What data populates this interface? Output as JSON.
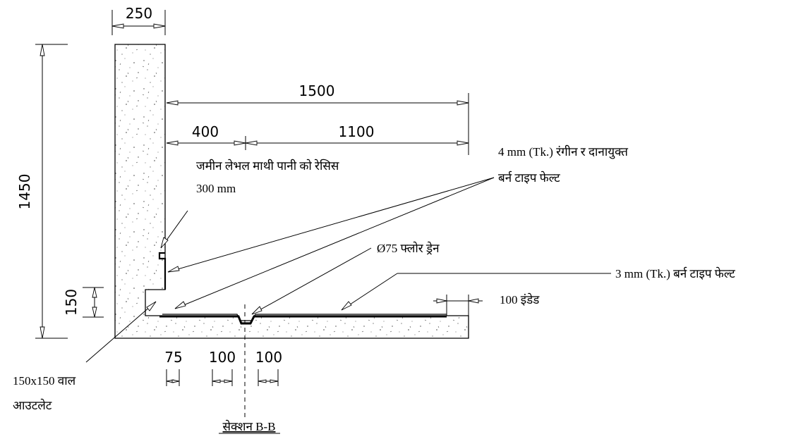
{
  "dimensions": {
    "wall_thickness": "250",
    "height": "1450",
    "total_width": "1500",
    "left_span": "400",
    "right_span": "1100",
    "recess_height": "150",
    "outlet_offset": "75",
    "drain_left": "100",
    "drain_right": "100"
  },
  "labels": {
    "recess": "जमीन लेभल माथी पानी को रेसिस",
    "recess_size": "300 mm",
    "felt_4mm_line1": "4 mm (Tk.) रंगीन र दानायुक्त",
    "felt_4mm_line2": "बर्न टाइप फेल्ट",
    "floor_drain": "Ø75 फ्लोर ड्रेन",
    "felt_3mm": "3 mm (Tk.) बर्न टाइप फेल्ट",
    "indent": "100 इंडेड",
    "wall_outlet_line1": "150x150 वाल",
    "wall_outlet_line2": "आउटलेट",
    "section_title": "सेक्शन B-B"
  }
}
